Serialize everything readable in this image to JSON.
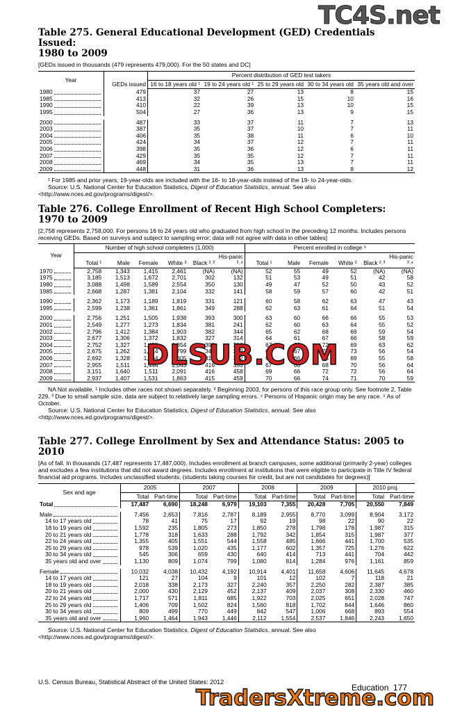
{
  "watermarks": [
    "TC4S.net",
    "DLSUB.COM",
    "TradersXtreme.com"
  ],
  "t275": {
    "title": [
      "Table 275. General Educational Development (GED) Credentials Issued:",
      "1980 to 2009"
    ],
    "headnote": "[GEDs issued in thousands (479 represents 479,000). For the 50 states and DC]",
    "header": {
      "year": "Year",
      "geds": "GEDs issued",
      "group": "Percent distribution of GED test takers",
      "cols": [
        "16 to 18 years old ¹",
        "19 to 24 years old ¹",
        "25 to 29 years old",
        "30 to 34 years old",
        "35 years old and over"
      ]
    },
    "row_groups": [
      [
        [
          "1980",
          "479",
          "37",
          "27",
          "13",
          "8",
          "15"
        ],
        [
          "1985",
          "413",
          "32",
          "26",
          "15",
          "10",
          "16"
        ],
        [
          "1990",
          "410",
          "22",
          "39",
          "13",
          "10",
          "15"
        ],
        [
          "1995",
          "504",
          "27",
          "36",
          "13",
          "9",
          "15"
        ]
      ],
      [
        [
          "2000",
          "487",
          "33",
          "37",
          "11",
          "7",
          "13"
        ],
        [
          "2003",
          "387",
          "35",
          "37",
          "10",
          "7",
          "11"
        ],
        [
          "2004",
          "406",
          "35",
          "38",
          "11",
          "6",
          "10"
        ],
        [
          "2005",
          "424",
          "34",
          "37",
          "12",
          "7",
          "11"
        ],
        [
          "2006",
          "398",
          "35",
          "36",
          "12",
          "6",
          "11"
        ],
        [
          "2007",
          "429",
          "35",
          "35",
          "12",
          "7",
          "11"
        ],
        [
          "2008",
          "469",
          "34",
          "35",
          "13",
          "7",
          "11"
        ],
        [
          "2009",
          "448",
          "31",
          "36",
          "13",
          "8",
          "12"
        ]
      ]
    ],
    "footnote": "¹ For 1985 and prior years, 19-year-olds are included with the 16- to 18-year-olds instead of the 19- to 24-year-olds.",
    "source": [
      "Source: U.S. National Center for Education Statistics, ",
      "Digest of Education Statistics",
      ", annual. See also <http://www.nces.ed.gov/programs/digest/>."
    ]
  },
  "t276": {
    "title": [
      "Table 276. College Enrollment of Recent High School Completers:",
      "1970 to 2009"
    ],
    "headnote": "[2,758 represents 2,758,000. For persons 16 to 24 years old who graduated from high school in the  preceding 12 months. Includes persons receiving GEDs. Based on surveys and subject to sampling error; data will not agree with data in other tables]",
    "header": {
      "year": "Year",
      "group1": "Number of high school completers (1,000)",
      "group2": "Percent enrolled in college ⁵",
      "cols": [
        "Total ¹",
        "Male",
        "Female",
        "White ²",
        "Black ²˒³",
        "His-panic ³˒⁴"
      ]
    },
    "row_groups": [
      [
        [
          "1970",
          "2,758",
          "1,343",
          "1,415",
          "2,461",
          "(NA)",
          "(NA)",
          "52",
          "55",
          "49",
          "52",
          "(NA)",
          "(NA)"
        ],
        [
          "1975",
          "3,185",
          "1,513",
          "1,672",
          "2,701",
          "302",
          "132",
          "51",
          "53",
          "49",
          "51",
          "42",
          "58"
        ],
        [
          "1980",
          "3,088",
          "1,498",
          "1,589",
          "2,554",
          "350",
          "130",
          "49",
          "47",
          "52",
          "50",
          "43",
          "52"
        ],
        [
          "1985",
          "2,668",
          "1,287",
          "1,381",
          "2,104",
          "332",
          "141",
          "58",
          "59",
          "57",
          "60",
          "42",
          "51"
        ]
      ],
      [
        [
          "1990",
          "2,362",
          "1,173",
          "1,189",
          "1,819",
          "331",
          "121",
          "60",
          "58",
          "62",
          "63",
          "47",
          "43"
        ],
        [
          "1995",
          "2,599",
          "1,238",
          "1,361",
          "1,861",
          "349",
          "288",
          "62",
          "63",
          "61",
          "64",
          "51",
          "54"
        ]
      ],
      [
        [
          "2000",
          "2,756",
          "1,251",
          "1,505",
          "1,938",
          "393",
          "300",
          "63",
          "60",
          "66",
          "66",
          "55",
          "53"
        ],
        [
          "2001",
          "2,549",
          "1,277",
          "1,273",
          "1,834",
          "381",
          "241",
          "62",
          "60",
          "63",
          "64",
          "55",
          "52"
        ],
        [
          "2002",
          "2,796",
          "1,412",
          "1,384",
          "1,903",
          "382",
          "344",
          "65",
          "62",
          "68",
          "69",
          "59",
          "54"
        ],
        [
          "2003",
          "2,677",
          "1,306",
          "1,372",
          "1,832",
          "327",
          "314",
          "64",
          "61",
          "67",
          "66",
          "58",
          "59"
        ],
        [
          "2004",
          "2,752",
          "1,327",
          "1,425",
          "1,854",
          "398",
          "286",
          "67",
          "61",
          "72",
          "69",
          "63",
          "62"
        ],
        [
          "2005",
          "2,675",
          "1,262",
          "1,414",
          "1,799",
          "345",
          "390",
          "69",
          "67",
          "70",
          "73",
          "56",
          "54"
        ],
        [
          "2006",
          "2,692",
          "1,328",
          "1,364",
          "1,805",
          "318",
          "382",
          "66",
          "66",
          "66",
          "69",
          "55",
          "58"
        ],
        [
          "2007",
          "2,955",
          "1,511",
          "1,444",
          "2,043",
          "416",
          "355",
          "67",
          "66",
          "68",
          "70",
          "56",
          "64"
        ],
        [
          "2008",
          "3,151",
          "1,640",
          "1,511",
          "2,091",
          "416",
          "458",
          "69",
          "66",
          "72",
          "72",
          "56",
          "64"
        ],
        [
          "2009",
          "2,937",
          "1,407",
          "1,531",
          "1,863",
          "415",
          "459",
          "70",
          "66",
          "74",
          "71",
          "70",
          "59"
        ]
      ]
    ],
    "footnote": "NA Not available. ¹ Includes other races not shown separately. ² Beginning 2003, for persons of this race group only. See footnote 2, Table 229. ³ Due to small sample size, data are subject to relatively large sampling errors. ⁴ Persons of Hispanic origin may be any race. ⁵ As of October.",
    "source": [
      "Source: U.S. National Center for Education Statistics, ",
      "Digest of Education Statistics",
      ", annual. See also <http://www.nces.ed.gov/programs/digest/>."
    ]
  },
  "t277": {
    "title": [
      "Table 277. College Enrollment by Sex and Attendance Status: 2005 to 2010"
    ],
    "headnote": "[As of fall. In thousands (17,487 represents 17,487,000). Includes enrollment at branch campuses, some additional (primarily 2-year) colleges and excludes a few institutions that did not award degrees. Includes enrollment at institutions that were eligible to participate in Title IV federal financial aid programs. Includes unclassified students, (students taking courses for credit, but are not candidates for degrees)]",
    "header": {
      "label": "Sex and age",
      "years": [
        "2005",
        "2007",
        "2008",
        "2009",
        "2010 proj."
      ],
      "cols": [
        "Total",
        "Part-time"
      ]
    },
    "row_groups": [
      [
        [
          "Total",
          "17,487",
          "6,690",
          "18,248",
          "6,979",
          "19,103",
          "7,355",
          "20,428",
          "7,705",
          "20,550",
          "7,849"
        ]
      ],
      [
        [
          "Male",
          "7,456",
          "2,653",
          "7,816",
          "2,787",
          "8,189",
          "2,955",
          "8,770",
          "3,099",
          "8,904",
          "3,172"
        ],
        [
          "14 to 17 years old",
          "78",
          "41",
          "75",
          "17",
          "92",
          "19",
          "98",
          "22",
          "90",
          "22"
        ],
        [
          "18 to 19 years old",
          "1,592",
          "235",
          "1,805",
          "273",
          "1,850",
          "278",
          "1,798",
          "178",
          "1,987",
          "315"
        ],
        [
          "20 to 21 years old",
          "1,778",
          "318",
          "1,633",
          "288",
          "1,792",
          "342",
          "1,854",
          "315",
          "1,987",
          "377"
        ],
        [
          "22 to 24 years old",
          "1,355",
          "405",
          "1,551",
          "544",
          "1,558",
          "485",
          "1,666",
          "441",
          "1,700",
          "535"
        ],
        [
          "25 to 29 years old",
          "978",
          "539",
          "1,020",
          "435",
          "1,177",
          "602",
          "1,357",
          "725",
          "1,276",
          "622"
        ],
        [
          "30 to 34 years old",
          "545",
          "306",
          "659",
          "430",
          "640",
          "414",
          "713",
          "441",
          "704",
          "442"
        ],
        [
          "35 years old and over",
          "1,130",
          "809",
          "1,074",
          "799",
          "1,080",
          "814",
          "1,284",
          "976",
          "1,161",
          "859"
        ]
      ],
      [
        [
          "Female",
          "10,032",
          "4,038",
          "10,432",
          "4,192",
          "10,914",
          "4,401",
          "11,658",
          "4,606",
          "11,645",
          "4,678"
        ],
        [
          "14 to 17 years old",
          "121",
          "27",
          "104",
          "9",
          "101",
          "12",
          "102",
          "7",
          "118",
          "21"
        ],
        [
          "18 to 19 years old",
          "2,018",
          "338",
          "2,173",
          "327",
          "2,240",
          "357",
          "2,250",
          "282",
          "2,387",
          "385"
        ],
        [
          "20 to 21 years old",
          "2,000",
          "430",
          "2,129",
          "452",
          "2,137",
          "409",
          "2,037",
          "308",
          "2,330",
          "460"
        ],
        [
          "22 to 24 years old",
          "1,717",
          "571",
          "1,811",
          "685",
          "1,922",
          "703",
          "2,025",
          "651",
          "2,028",
          "747"
        ],
        [
          "25 to 29 years old",
          "1,406",
          "709",
          "1,502",
          "824",
          "1,560",
          "818",
          "1,702",
          "844",
          "1,646",
          "860"
        ],
        [
          "30 to 34 years old",
          "809",
          "499",
          "770",
          "449",
          "842",
          "547",
          "1,006",
          "668",
          "893",
          "554"
        ],
        [
          "35 years old and over",
          "1,960",
          "1,464",
          "1,943",
          "1,446",
          "2,112",
          "1,554",
          "2,537",
          "1,846",
          "2,243",
          "1,650"
        ]
      ]
    ],
    "source": [
      "Source: U.S. National Center for Education Statistics, ",
      "Digest of Education Statistics",
      ", annual. See also <http://www.nces.ed.gov/programs/digest/>."
    ]
  },
  "footer": {
    "left": "U.S. Census Bureau, Statistical Abstract of the United States: 2012",
    "section": "Education",
    "page": "177"
  }
}
